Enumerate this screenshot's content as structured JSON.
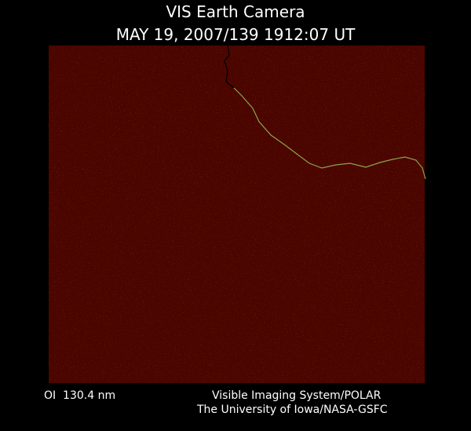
{
  "header": {
    "title": "VIS Earth Camera",
    "subtitle": "MAY 19, 2007/139 1912:07 UT"
  },
  "footer": {
    "filter": "OI  130.4 nm",
    "credit_lines": [
      "Visible Imaging System/POLAR",
      "The University of Iowa/NASA-GSFC"
    ]
  }
}
